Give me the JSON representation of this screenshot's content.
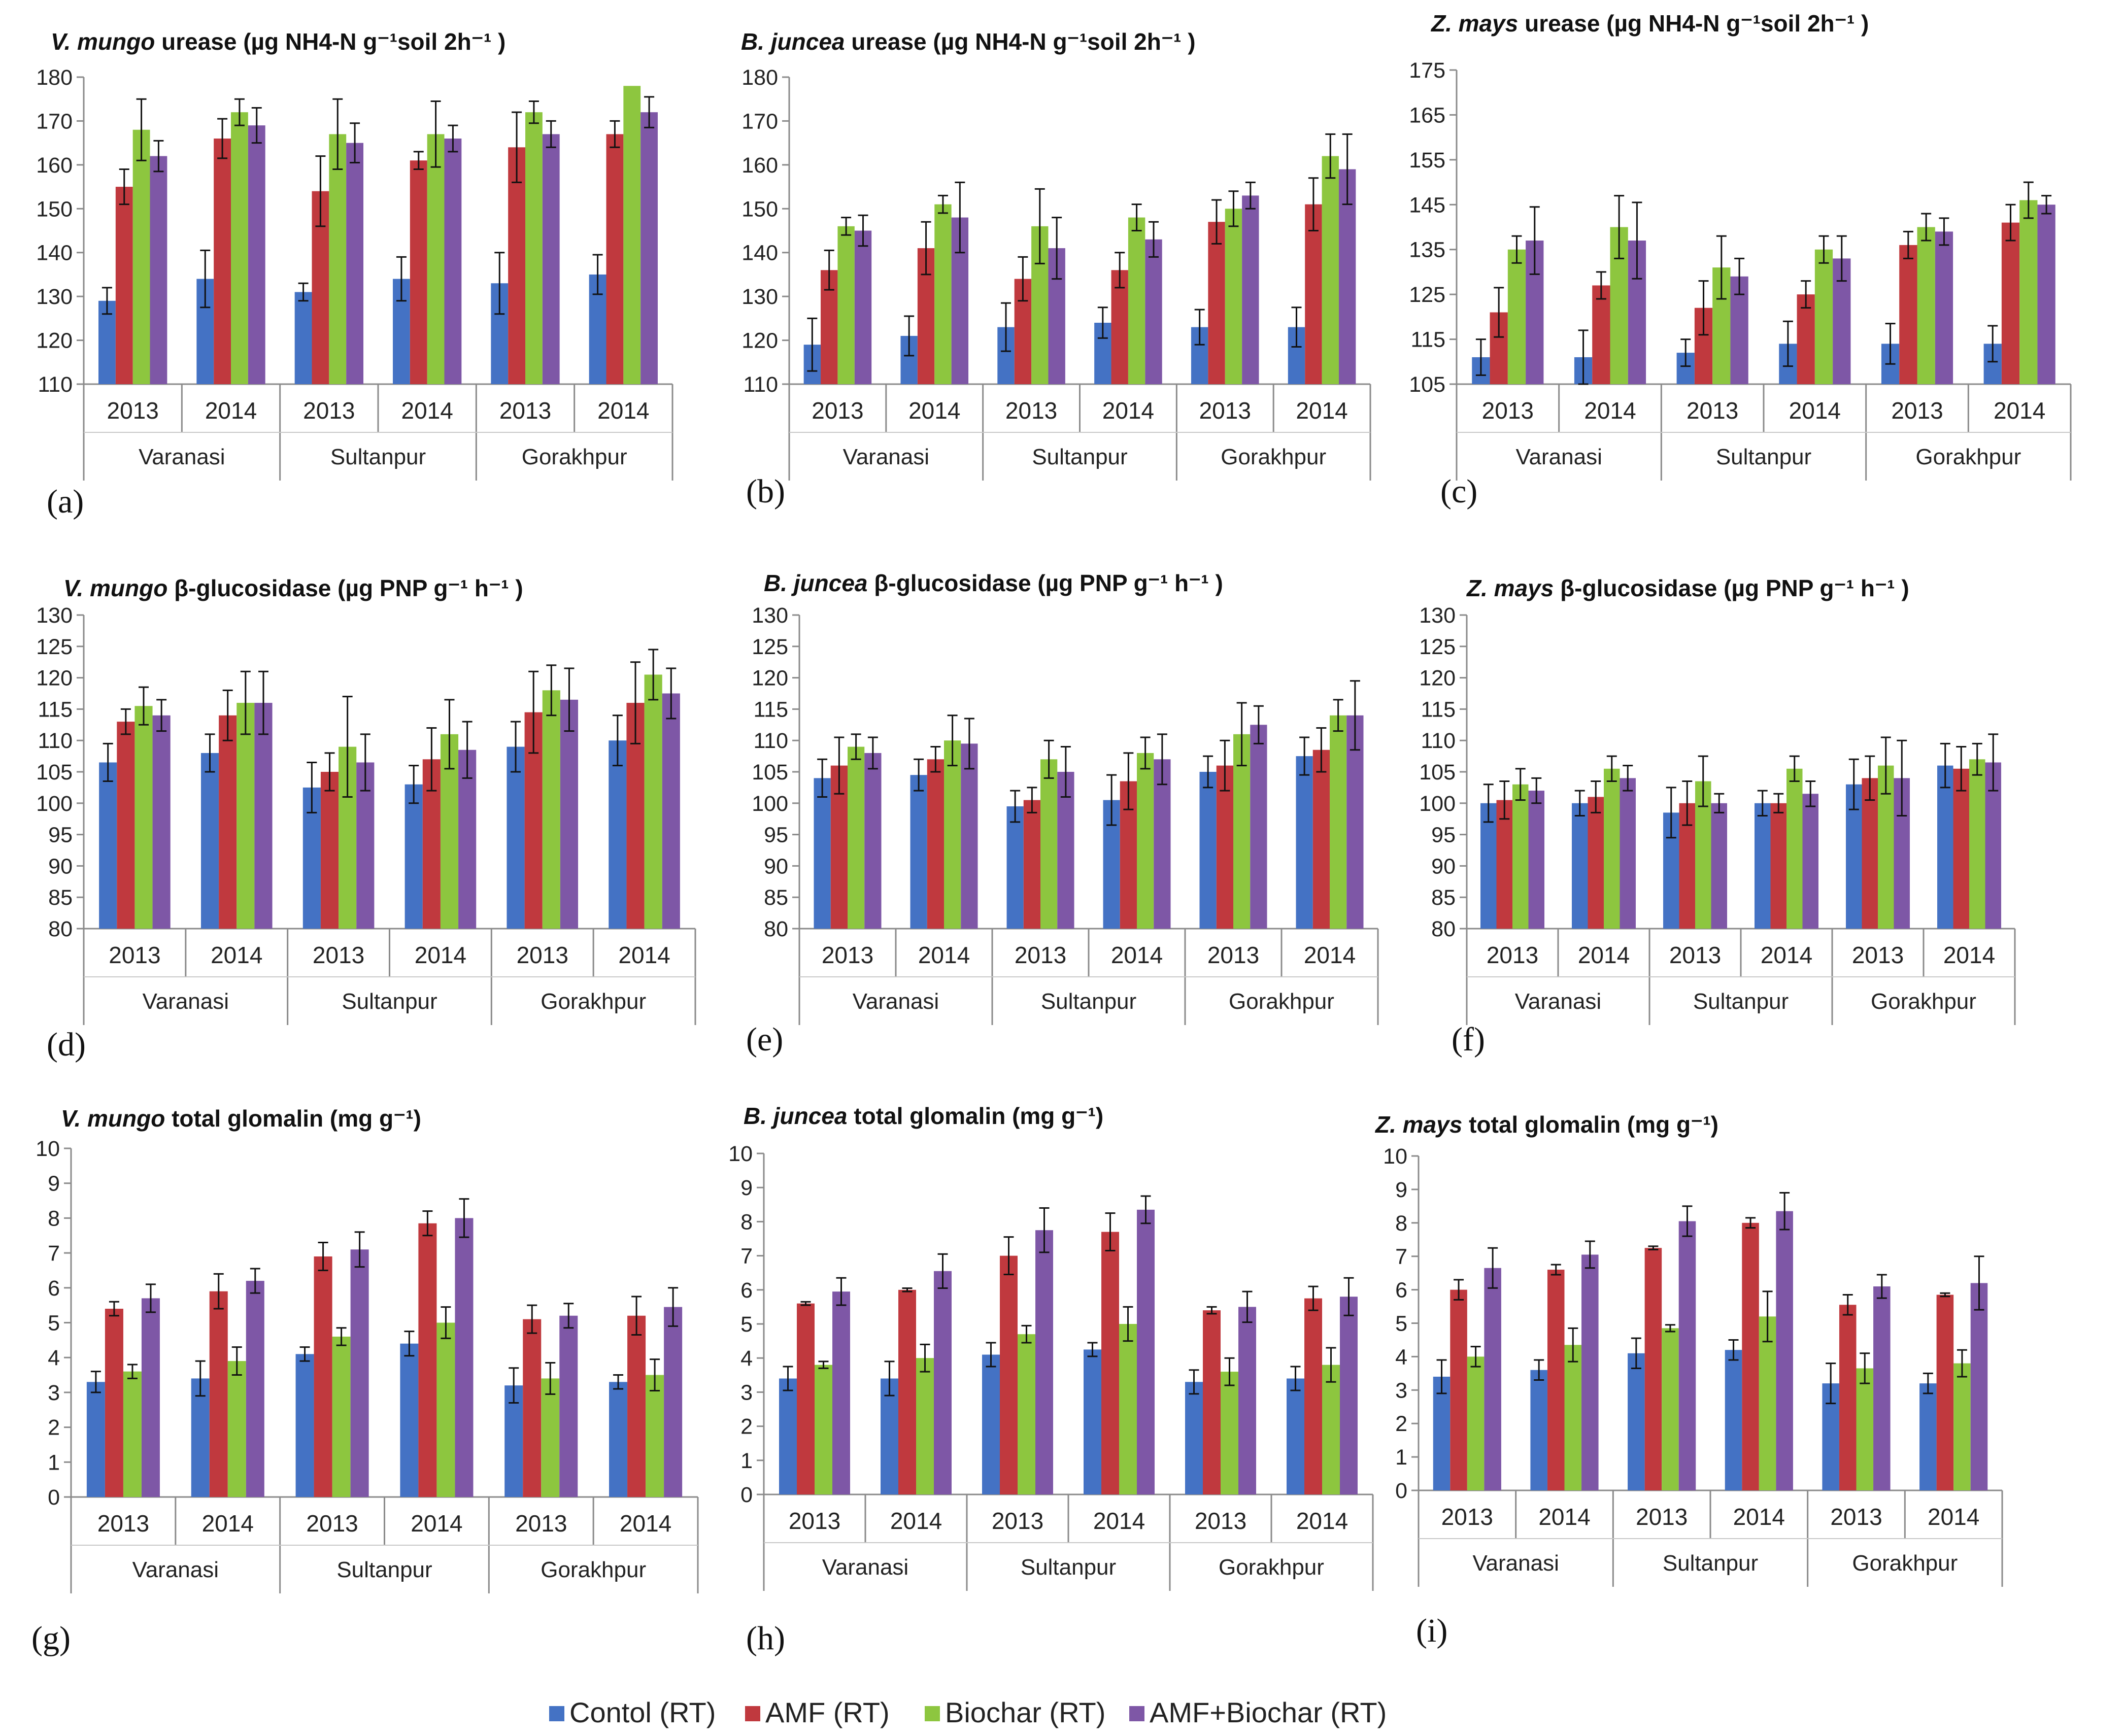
{
  "colors": {
    "control": "#4472C4",
    "amf": "#C0393E",
    "biochar": "#8DC63F",
    "amf_biochar": "#7E57A6"
  },
  "legend": {
    "items": [
      {
        "label": "Contol (RT)",
        "color": "#4472C4"
      },
      {
        "label": "AMF (RT)",
        "color": "#C0393E"
      },
      {
        "label": "Biochar (RT)",
        "color": "#8DC63F"
      },
      {
        "label": "AMF+Biochar (RT)",
        "color": "#7E57A6"
      }
    ]
  },
  "chart_data": [
    {
      "panel": "(a)",
      "type": "bar",
      "species": "V. mungo",
      "title": "urease (µg NH4-N g⁻¹soil 2h⁻¹ )",
      "years": [
        "2013",
        "2014",
        "2013",
        "2014",
        "2013",
        "2014"
      ],
      "sites": [
        "Varanasi",
        "Sultanpur",
        "Gorakhpur"
      ],
      "ylim": [
        110,
        180
      ],
      "yticks": [
        110,
        120,
        130,
        140,
        150,
        160,
        170,
        180
      ],
      "series": [
        {
          "name": "Contol (RT)",
          "values": [
            129,
            134,
            131,
            134,
            133,
            135
          ],
          "errors": [
            3,
            6.5,
            2,
            5,
            7,
            4.5
          ]
        },
        {
          "name": "AMF (RT)",
          "values": [
            155,
            166,
            154,
            161,
            164,
            167
          ],
          "errors": [
            4,
            4.5,
            8,
            2,
            8,
            3
          ]
        },
        {
          "name": "Biochar (RT)",
          "values": [
            168,
            172,
            167,
            167,
            172,
            178
          ],
          "errors": [
            7,
            3,
            8,
            7.5,
            2.5,
            0
          ]
        },
        {
          "name": "AMF+Biochar (RT)",
          "values": [
            162,
            169,
            165,
            166,
            167,
            172
          ],
          "errors": [
            3.5,
            4,
            4.5,
            3,
            3,
            3.5
          ]
        }
      ]
    },
    {
      "panel": "(b)",
      "type": "bar",
      "species": "B. juncea",
      "title": "urease (µg NH4-N g⁻¹soil 2h⁻¹ )",
      "years": [
        "2013",
        "2014",
        "2013",
        "2014",
        "2013",
        "2014"
      ],
      "sites": [
        "Varanasi",
        "Sultanpur",
        "Gorakhpur"
      ],
      "ylim": [
        110,
        180
      ],
      "yticks": [
        110,
        120,
        130,
        140,
        150,
        160,
        170,
        180
      ],
      "series": [
        {
          "name": "Contol (RT)",
          "values": [
            119,
            121,
            123,
            124,
            123,
            123
          ],
          "errors": [
            6,
            4.5,
            5.5,
            3.5,
            4,
            4.5
          ]
        },
        {
          "name": "AMF (RT)",
          "values": [
            136,
            141,
            134,
            136,
            147,
            151
          ],
          "errors": [
            4.5,
            6,
            5,
            4,
            5,
            6
          ]
        },
        {
          "name": "Biochar (RT)",
          "values": [
            146,
            151,
            146,
            148,
            150,
            162
          ],
          "errors": [
            2,
            2,
            8.5,
            3,
            4,
            5
          ]
        },
        {
          "name": "AMF+Biochar (RT)",
          "values": [
            145,
            148,
            141,
            143,
            153,
            159
          ],
          "errors": [
            3.5,
            8,
            7,
            4,
            3,
            8
          ]
        }
      ]
    },
    {
      "panel": "(c)",
      "type": "bar",
      "species": "Z. mays",
      "title": "urease (µg NH4-N g⁻¹soil 2h⁻¹ )",
      "years": [
        "2013",
        "2014",
        "2013",
        "2014",
        "2013",
        "2014"
      ],
      "sites": [
        "Varanasi",
        "Sultanpur",
        "Gorakhpur"
      ],
      "ylim": [
        105,
        175
      ],
      "yticks": [
        105,
        115,
        125,
        135,
        145,
        155,
        165,
        175
      ],
      "series": [
        {
          "name": "Contol (RT)",
          "values": [
            111,
            111,
            112,
            114,
            114,
            114
          ],
          "errors": [
            4,
            6,
            3,
            5,
            4.5,
            4
          ]
        },
        {
          "name": "AMF (RT)",
          "values": [
            121,
            127,
            122,
            125,
            136,
            141
          ],
          "errors": [
            5.5,
            3,
            6,
            3,
            3,
            4
          ]
        },
        {
          "name": "Biochar (RT)",
          "values": [
            135,
            140,
            131,
            135,
            140,
            146
          ],
          "errors": [
            3,
            7,
            7,
            3,
            3,
            4
          ]
        },
        {
          "name": "AMF+Biochar (RT)",
          "values": [
            137,
            137,
            129,
            133,
            139,
            145
          ],
          "errors": [
            7.5,
            8.5,
            4,
            5,
            3,
            2
          ]
        }
      ]
    },
    {
      "panel": "(d)",
      "type": "bar",
      "species": "V. mungo",
      "title": "β-glucosidase (µg PNP g⁻¹ h⁻¹ )",
      "years": [
        "2013",
        "2014",
        "2013",
        "2014",
        "2013",
        "2014"
      ],
      "sites": [
        "Varanasi",
        "Sultanpur",
        "Gorakhpur"
      ],
      "ylim": [
        80,
        130
      ],
      "yticks": [
        80,
        85,
        90,
        95,
        100,
        105,
        110,
        115,
        120,
        125,
        130
      ],
      "series": [
        {
          "name": "Contol (RT)",
          "values": [
            106.5,
            108,
            102.5,
            103,
            109,
            110
          ],
          "errors": [
            3,
            3,
            4,
            3,
            4,
            4
          ]
        },
        {
          "name": "AMF (RT)",
          "values": [
            113,
            114,
            105,
            107,
            114.5,
            116
          ],
          "errors": [
            2,
            4,
            3,
            5,
            6.5,
            6.5
          ]
        },
        {
          "name": "Biochar (RT)",
          "values": [
            115.5,
            116,
            109,
            111,
            118,
            120.5
          ],
          "errors": [
            3,
            5,
            8,
            5.5,
            4,
            4
          ]
        },
        {
          "name": "AMF+Biochar (RT)",
          "values": [
            114,
            116,
            106.5,
            108.5,
            116.5,
            117.5
          ],
          "errors": [
            2.5,
            5,
            4.5,
            4.5,
            5,
            4
          ]
        }
      ]
    },
    {
      "panel": "(e)",
      "type": "bar",
      "species": "B. juncea",
      "title": "β-glucosidase (µg PNP g⁻¹ h⁻¹ )",
      "years": [
        "2013",
        "2014",
        "2013",
        "2014",
        "2013",
        "2014"
      ],
      "sites": [
        "Varanasi",
        "Sultanpur",
        "Gorakhpur"
      ],
      "ylim": [
        80,
        130
      ],
      "yticks": [
        80,
        85,
        90,
        95,
        100,
        105,
        110,
        115,
        120,
        125,
        130
      ],
      "series": [
        {
          "name": "Contol (RT)",
          "values": [
            104,
            104.5,
            99.5,
            100.5,
            105,
            107.5
          ],
          "errors": [
            3,
            2.5,
            2.5,
            4,
            2.5,
            3
          ]
        },
        {
          "name": "AMF (RT)",
          "values": [
            106,
            107,
            100.5,
            103.5,
            106,
            108.5
          ],
          "errors": [
            4.5,
            2,
            2,
            4.5,
            4,
            3.5
          ]
        },
        {
          "name": "Biochar (RT)",
          "values": [
            109,
            110,
            107,
            108,
            111,
            114
          ],
          "errors": [
            2,
            4,
            3,
            2.5,
            5,
            2.5
          ]
        },
        {
          "name": "AMF+Biochar (RT)",
          "values": [
            108,
            109.5,
            105,
            107,
            112.5,
            114
          ],
          "errors": [
            2.5,
            4,
            4,
            4,
            3,
            5.5
          ]
        }
      ]
    },
    {
      "panel": "(f)",
      "type": "bar",
      "species": "Z. mays",
      "title": "β-glucosidase (µg PNP g⁻¹ h⁻¹ )",
      "years": [
        "2013",
        "2014",
        "2013",
        "2014",
        "2013",
        "2014"
      ],
      "sites": [
        "Varanasi",
        "Sultanpur",
        "Gorakhpur"
      ],
      "ylim": [
        80,
        130
      ],
      "yticks": [
        80,
        85,
        90,
        95,
        100,
        105,
        110,
        115,
        120,
        125,
        130
      ],
      "series": [
        {
          "name": "Contol (RT)",
          "values": [
            100,
            100,
            98.5,
            100,
            103,
            106
          ],
          "errors": [
            3,
            2,
            4,
            2,
            4,
            3.5
          ]
        },
        {
          "name": "AMF (RT)",
          "values": [
            100.5,
            101,
            100,
            100,
            104,
            105.5
          ],
          "errors": [
            3,
            2.5,
            3.5,
            1.5,
            3.5,
            3.5
          ]
        },
        {
          "name": "Biochar (RT)",
          "values": [
            103,
            105.5,
            103.5,
            105.5,
            106,
            107
          ],
          "errors": [
            2.5,
            2,
            4,
            2,
            4.5,
            2.5
          ]
        },
        {
          "name": "AMF+Biochar (RT)",
          "values": [
            102,
            104,
            100,
            101.5,
            104,
            106.5
          ],
          "errors": [
            2,
            2,
            1.5,
            2,
            6,
            4.5
          ]
        }
      ]
    },
    {
      "panel": "(g)",
      "type": "bar",
      "species": "V. mungo",
      "title": "total glomalin (mg g⁻¹)",
      "years": [
        "2013",
        "2014",
        "2013",
        "2014",
        "2013",
        "2014"
      ],
      "sites": [
        "Varanasi",
        "Sultanpur",
        "Gorakhpur"
      ],
      "ylim": [
        0,
        10
      ],
      "yticks": [
        0,
        1,
        2,
        3,
        4,
        5,
        6,
        7,
        8,
        9,
        10
      ],
      "series": [
        {
          "name": "Contol (RT)",
          "values": [
            3.3,
            3.4,
            4.1,
            4.4,
            3.2,
            3.3
          ],
          "errors": [
            0.3,
            0.5,
            0.2,
            0.35,
            0.5,
            0.2
          ]
        },
        {
          "name": "AMF (RT)",
          "values": [
            5.4,
            5.9,
            6.9,
            7.85,
            5.1,
            5.2
          ],
          "errors": [
            0.2,
            0.5,
            0.4,
            0.35,
            0.4,
            0.55
          ]
        },
        {
          "name": "Biochar (RT)",
          "values": [
            3.6,
            3.9,
            4.6,
            5.0,
            3.4,
            3.5
          ],
          "errors": [
            0.2,
            0.4,
            0.25,
            0.45,
            0.45,
            0.45
          ]
        },
        {
          "name": "AMF+Biochar (RT)",
          "values": [
            5.7,
            6.2,
            7.1,
            8.0,
            5.2,
            5.45
          ],
          "errors": [
            0.4,
            0.35,
            0.5,
            0.55,
            0.35,
            0.55
          ]
        }
      ]
    },
    {
      "panel": "(h)",
      "type": "bar",
      "species": "B. juncea",
      "title": "total glomalin (mg g⁻¹)",
      "years": [
        "2013",
        "2014",
        "2013",
        "2014",
        "2013",
        "2014"
      ],
      "sites": [
        "Varanasi",
        "Sultanpur",
        "Gorakhpur"
      ],
      "ylim": [
        0,
        10
      ],
      "yticks": [
        0,
        1,
        2,
        3,
        4,
        5,
        6,
        7,
        8,
        9,
        10
      ],
      "series": [
        {
          "name": "Contol (RT)",
          "values": [
            3.4,
            3.4,
            4.1,
            4.25,
            3.3,
            3.4
          ],
          "errors": [
            0.35,
            0.5,
            0.35,
            0.2,
            0.35,
            0.35
          ]
        },
        {
          "name": "AMF (RT)",
          "values": [
            5.6,
            6.0,
            7.0,
            7.7,
            5.4,
            5.75
          ],
          "errors": [
            0.05,
            0.05,
            0.55,
            0.55,
            0.1,
            0.35
          ]
        },
        {
          "name": "Biochar (RT)",
          "values": [
            3.8,
            4.0,
            4.7,
            5.0,
            3.6,
            3.8
          ],
          "errors": [
            0.1,
            0.4,
            0.25,
            0.5,
            0.4,
            0.5
          ]
        },
        {
          "name": "AMF+Biochar (RT)",
          "values": [
            5.95,
            6.55,
            7.75,
            8.35,
            5.5,
            5.8
          ],
          "errors": [
            0.4,
            0.5,
            0.65,
            0.4,
            0.45,
            0.55
          ]
        }
      ]
    },
    {
      "panel": "(i)",
      "type": "bar",
      "species": "Z. mays",
      "title": "total glomalin (mg g⁻¹)",
      "years": [
        "2013",
        "2014",
        "2013",
        "2014",
        "2013",
        "2014"
      ],
      "sites": [
        "Varanasi",
        "Sultanpur",
        "Gorakhpur"
      ],
      "ylim": [
        0,
        10
      ],
      "yticks": [
        0,
        1,
        2,
        3,
        4,
        5,
        6,
        7,
        8,
        9,
        10
      ],
      "series": [
        {
          "name": "Contol (RT)",
          "values": [
            3.4,
            3.6,
            4.1,
            4.2,
            3.2,
            3.2
          ],
          "errors": [
            0.5,
            0.3,
            0.45,
            0.3,
            0.6,
            0.3
          ]
        },
        {
          "name": "AMF (RT)",
          "values": [
            6.0,
            6.6,
            7.25,
            8.0,
            5.55,
            5.85
          ],
          "errors": [
            0.3,
            0.15,
            0.05,
            0.15,
            0.3,
            0.05
          ]
        },
        {
          "name": "Biochar (RT)",
          "values": [
            4.0,
            4.35,
            4.85,
            5.2,
            3.65,
            3.8
          ],
          "errors": [
            0.3,
            0.5,
            0.1,
            0.75,
            0.45,
            0.4
          ]
        },
        {
          "name": "AMF+Biochar (RT)",
          "values": [
            6.65,
            7.05,
            8.05,
            8.35,
            6.1,
            6.2
          ],
          "errors": [
            0.6,
            0.4,
            0.45,
            0.55,
            0.35,
            0.8
          ]
        }
      ]
    }
  ]
}
